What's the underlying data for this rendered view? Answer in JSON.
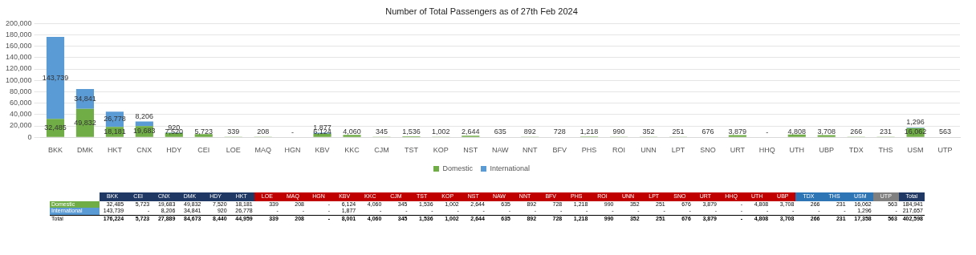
{
  "chart_data": [
    {
      "type": "bar",
      "title": "Number of Total Passengers as of 27th Feb 2024",
      "stacked": true,
      "grid": "y",
      "legend": "bottom",
      "categories": [
        "BKK",
        "DMK",
        "HKT",
        "CNX",
        "HDY",
        "CEI",
        "LOE",
        "MAQ",
        "HGN",
        "KBV",
        "KKC",
        "CJM",
        "TST",
        "KOP",
        "NST",
        "NAW",
        "NNT",
        "BFV",
        "PHS",
        "ROI",
        "UNN",
        "LPT",
        "SNO",
        "URT",
        "HHQ",
        "UTH",
        "UBP",
        "TDX",
        "THS",
        "USM",
        "UTP"
      ],
      "ylim": [
        0,
        200000
      ],
      "yticks": [
        {
          "value": 0,
          "label": "0"
        },
        {
          "value": 20000,
          "label": "20,000"
        },
        {
          "value": 40000,
          "label": "40,000"
        },
        {
          "value": 60000,
          "label": "60,000"
        },
        {
          "value": 80000,
          "label": "80,000"
        },
        {
          "value": 100000,
          "label": "100,000"
        },
        {
          "value": 120000,
          "label": "120,000"
        },
        {
          "value": 140000,
          "label": "140,000"
        },
        {
          "value": 160000,
          "label": "160,000"
        },
        {
          "value": 180000,
          "label": "180,000"
        },
        {
          "value": 200000,
          "label": "200,000"
        }
      ],
      "series": [
        {
          "name": "Domestic",
          "color": "#70ad47",
          "values": [
            32485,
            49832,
            18181,
            19683,
            7520,
            5723,
            339,
            208,
            0,
            6124,
            4060,
            345,
            1536,
            1002,
            2644,
            635,
            892,
            728,
            1218,
            990,
            352,
            251,
            676,
            3879,
            0,
            4808,
            3708,
            266,
            231,
            16062,
            563
          ],
          "value_labels": [
            "32,485",
            "49,832",
            "18,181",
            "19,683",
            "7,520",
            "5,723",
            "339",
            "208",
            "-",
            "6,124",
            "4,060",
            "345",
            "1,536",
            "1,002",
            "2,644",
            "635",
            "892",
            "728",
            "1,218",
            "990",
            "352",
            "251",
            "676",
            "3,879",
            "-",
            "4,808",
            "3,708",
            "266",
            "231",
            "16,062",
            "563"
          ]
        },
        {
          "name": "International",
          "color": "#5b9bd5",
          "values": [
            143739,
            34841,
            26778,
            8206,
            920,
            null,
            null,
            null,
            null,
            1877,
            null,
            null,
            null,
            null,
            null,
            null,
            null,
            null,
            null,
            null,
            null,
            null,
            null,
            null,
            null,
            null,
            null,
            null,
            null,
            1296,
            null
          ],
          "value_labels": [
            "143,739",
            "34,841",
            "26,778",
            "8,206",
            "920",
            null,
            null,
            null,
            null,
            "1,877",
            null,
            null,
            null,
            null,
            null,
            null,
            null,
            null,
            null,
            null,
            null,
            null,
            null,
            null,
            null,
            null,
            null,
            null,
            null,
            "1,296",
            null
          ]
        }
      ]
    },
    {
      "type": "other",
      "categories": [
        "BKK",
        "CEI",
        "CNX",
        "DMK",
        "HDY",
        "HKT",
        "LOE",
        "MAQ",
        "HGN",
        "KBV",
        "KKC",
        "CJM",
        "TST",
        "KOP",
        "NST",
        "NAW",
        "NNT",
        "BFV",
        "PHS",
        "ROI",
        "UNN",
        "LPT",
        "SNO",
        "URT",
        "HHQ",
        "UTH",
        "UBP",
        "TDX",
        "THS",
        "USM",
        "UTP",
        "Total"
      ],
      "colors": [
        "#1f3864",
        "#1f3864",
        "#1f3864",
        "#1f3864",
        "#1f3864",
        "#1f3864",
        "#c00000",
        "#c00000",
        "#c00000",
        "#c00000",
        "#c00000",
        "#c00000",
        "#c00000",
        "#c00000",
        "#c00000",
        "#c00000",
        "#c00000",
        "#c00000",
        "#c00000",
        "#c00000",
        "#c00000",
        "#c00000",
        "#c00000",
        "#c00000",
        "#c00000",
        "#c00000",
        "#c00000",
        "#2e75b6",
        "#2e75b6",
        "#2e75b6",
        "#808080",
        "#1f3864"
      ],
      "y_categories": [
        "Domestic",
        "International",
        "Total"
      ],
      "cell_labels": [
        [
          "32,485",
          "5,723",
          "19,683",
          "49,832",
          "7,520",
          "18,181",
          "339",
          "208",
          "-",
          "6,124",
          "4,060",
          "345",
          "1,536",
          "1,002",
          "2,644",
          "635",
          "892",
          "728",
          "1,218",
          "990",
          "352",
          "251",
          "676",
          "3,879",
          "-",
          "4,808",
          "3,708",
          "266",
          "231",
          "16,062",
          "563",
          "184,941"
        ],
        [
          "143,739",
          "-",
          "8,206",
          "34,841",
          "920",
          "26,778",
          "-",
          "-",
          "-",
          "1,877",
          "-",
          "-",
          "-",
          "-",
          "-",
          "-",
          "-",
          "-",
          "-",
          "-",
          "-",
          "-",
          "-",
          "-",
          "-",
          "-",
          "-",
          "-",
          "-",
          "1,296",
          "-",
          "217,657"
        ],
        [
          "176,224",
          "5,723",
          "27,889",
          "84,673",
          "8,440",
          "44,959",
          "339",
          "208",
          "-",
          "8,001",
          "4,060",
          "345",
          "1,536",
          "1,002",
          "2,644",
          "635",
          "892",
          "728",
          "1,218",
          "990",
          "352",
          "251",
          "676",
          "3,879",
          "-",
          "4,808",
          "3,708",
          "266",
          "231",
          "17,358",
          "563",
          "402,598"
        ]
      ]
    }
  ]
}
